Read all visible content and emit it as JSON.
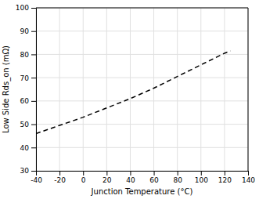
{
  "chart_data": {
    "type": "line",
    "xlabel": "Junction Temperature (°C)",
    "ylabel": "Low Side Rds_on (mΩ)",
    "x": [
      -40,
      -20,
      0,
      20,
      40,
      60,
      80,
      100,
      120,
      125
    ],
    "values": [
      46.0,
      49.5,
      53.0,
      57.0,
      61.0,
      65.5,
      70.5,
      75.5,
      80.5,
      81.5
    ],
    "color": "#000000",
    "line_style": "dashed",
    "xlim": [
      -40,
      140
    ],
    "ylim": [
      30,
      100
    ],
    "xticks": [
      -40,
      -20,
      0,
      20,
      40,
      60,
      80,
      100,
      120,
      140
    ],
    "yticks": [
      30,
      40,
      50,
      60,
      70,
      80,
      90,
      100
    ],
    "grid": true
  }
}
